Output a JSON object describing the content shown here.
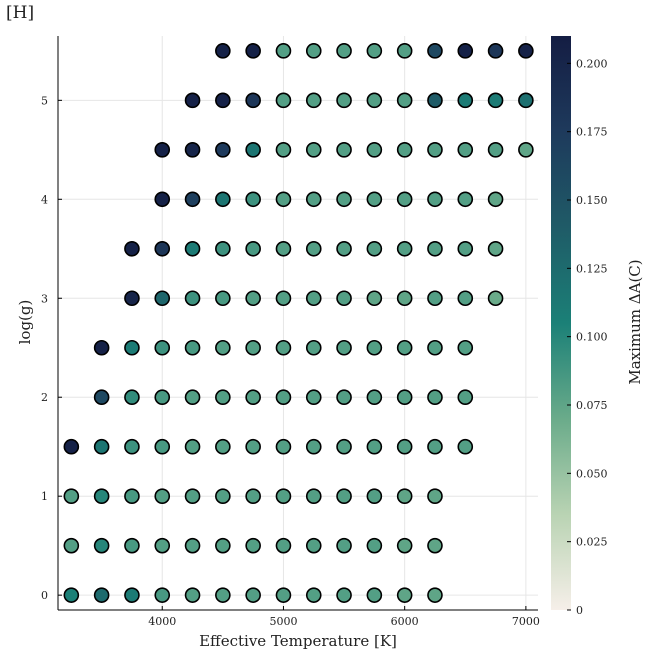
{
  "panel_label": "[H]",
  "chart_data": {
    "type": "scatter",
    "xlabel": "Effective Temperature [K]",
    "ylabel": "log(g)",
    "colorbar_label": "Maximum ΔA(C)",
    "xlim": [
      3140,
      7100
    ],
    "ylim": [
      -0.15,
      5.65
    ],
    "xticks": [
      4000,
      5000,
      6000,
      7000
    ],
    "yticks": [
      0,
      1,
      2,
      3,
      4,
      5
    ],
    "colorbar_ticks": [
      0,
      0.025,
      0.05,
      0.075,
      0.1,
      0.125,
      0.15,
      0.175,
      0.2
    ],
    "colorbar_tick_labels": [
      "0",
      "0.025",
      "0.050",
      "0.075",
      "0.100",
      "0.125",
      "0.150",
      "0.175",
      "0.200"
    ],
    "clim": [
      0,
      0.21
    ],
    "grid": true,
    "colormap": [
      "#f6efe9",
      "#b9d3b3",
      "#6aab8a",
      "#1b8077",
      "#1f5b67",
      "#1e3a5c",
      "#141d43"
    ],
    "points": [
      [
        3250,
        0,
        0.105
      ],
      [
        3500,
        0,
        0.125
      ],
      [
        3750,
        0,
        0.11
      ],
      [
        4000,
        0,
        0.085
      ],
      [
        4250,
        0,
        0.08
      ],
      [
        4500,
        0,
        0.08
      ],
      [
        4750,
        0,
        0.08
      ],
      [
        5000,
        0,
        0.08
      ],
      [
        5250,
        0,
        0.08
      ],
      [
        5500,
        0,
        0.08
      ],
      [
        5750,
        0,
        0.08
      ],
      [
        6000,
        0,
        0.075
      ],
      [
        6250,
        0,
        0.075
      ],
      [
        3250,
        0.5,
        0.08
      ],
      [
        3500,
        0.5,
        0.1
      ],
      [
        3750,
        0.5,
        0.085
      ],
      [
        4000,
        0.5,
        0.08
      ],
      [
        4250,
        0.5,
        0.08
      ],
      [
        4500,
        0.5,
        0.08
      ],
      [
        4750,
        0.5,
        0.08
      ],
      [
        5000,
        0.5,
        0.08
      ],
      [
        5250,
        0.5,
        0.08
      ],
      [
        5500,
        0.5,
        0.08
      ],
      [
        5750,
        0.5,
        0.08
      ],
      [
        6000,
        0.5,
        0.075
      ],
      [
        6250,
        0.5,
        0.075
      ],
      [
        3250,
        1,
        0.08
      ],
      [
        3500,
        1,
        0.1
      ],
      [
        3750,
        1,
        0.085
      ],
      [
        4000,
        1,
        0.08
      ],
      [
        4250,
        1,
        0.08
      ],
      [
        4500,
        1,
        0.08
      ],
      [
        4750,
        1,
        0.08
      ],
      [
        5000,
        1,
        0.08
      ],
      [
        5250,
        1,
        0.08
      ],
      [
        5500,
        1,
        0.08
      ],
      [
        5750,
        1,
        0.08
      ],
      [
        6000,
        1,
        0.075
      ],
      [
        6250,
        1,
        0.075
      ],
      [
        3250,
        1.5,
        0.205
      ],
      [
        3500,
        1.5,
        0.115
      ],
      [
        3750,
        1.5,
        0.09
      ],
      [
        4000,
        1.5,
        0.085
      ],
      [
        4250,
        1.5,
        0.08
      ],
      [
        4500,
        1.5,
        0.08
      ],
      [
        4750,
        1.5,
        0.08
      ],
      [
        5000,
        1.5,
        0.08
      ],
      [
        5250,
        1.5,
        0.08
      ],
      [
        5500,
        1.5,
        0.08
      ],
      [
        5750,
        1.5,
        0.08
      ],
      [
        6000,
        1.5,
        0.08
      ],
      [
        6250,
        1.5,
        0.08
      ],
      [
        6500,
        1.5,
        0.08
      ],
      [
        3500,
        2,
        0.16
      ],
      [
        3750,
        2,
        0.095
      ],
      [
        4000,
        2,
        0.085
      ],
      [
        4250,
        2,
        0.08
      ],
      [
        4500,
        2,
        0.08
      ],
      [
        4750,
        2,
        0.08
      ],
      [
        5000,
        2,
        0.08
      ],
      [
        5250,
        2,
        0.08
      ],
      [
        5500,
        2,
        0.08
      ],
      [
        5750,
        2,
        0.08
      ],
      [
        6000,
        2,
        0.08
      ],
      [
        6250,
        2,
        0.08
      ],
      [
        6500,
        2,
        0.08
      ],
      [
        3500,
        2.5,
        0.205
      ],
      [
        3750,
        2.5,
        0.11
      ],
      [
        4000,
        2.5,
        0.09
      ],
      [
        4250,
        2.5,
        0.085
      ],
      [
        4500,
        2.5,
        0.08
      ],
      [
        4750,
        2.5,
        0.08
      ],
      [
        5000,
        2.5,
        0.08
      ],
      [
        5250,
        2.5,
        0.08
      ],
      [
        5500,
        2.5,
        0.08
      ],
      [
        5750,
        2.5,
        0.08
      ],
      [
        6000,
        2.5,
        0.08
      ],
      [
        6250,
        2.5,
        0.08
      ],
      [
        6500,
        2.5,
        0.08
      ],
      [
        3750,
        3,
        0.2
      ],
      [
        4000,
        3,
        0.13
      ],
      [
        4250,
        3,
        0.09
      ],
      [
        4500,
        3,
        0.085
      ],
      [
        4750,
        3,
        0.08
      ],
      [
        5000,
        3,
        0.08
      ],
      [
        5250,
        3,
        0.08
      ],
      [
        5500,
        3,
        0.08
      ],
      [
        5750,
        3,
        0.075
      ],
      [
        6000,
        3,
        0.075
      ],
      [
        6250,
        3,
        0.08
      ],
      [
        6500,
        3,
        0.08
      ],
      [
        6750,
        3,
        0.07
      ],
      [
        3750,
        3.5,
        0.205
      ],
      [
        4000,
        3.5,
        0.18
      ],
      [
        4250,
        3.5,
        0.11
      ],
      [
        4500,
        3.5,
        0.09
      ],
      [
        4750,
        3.5,
        0.085
      ],
      [
        5000,
        3.5,
        0.08
      ],
      [
        5250,
        3.5,
        0.08
      ],
      [
        5500,
        3.5,
        0.08
      ],
      [
        5750,
        3.5,
        0.08
      ],
      [
        6000,
        3.5,
        0.08
      ],
      [
        6250,
        3.5,
        0.08
      ],
      [
        6500,
        3.5,
        0.08
      ],
      [
        6750,
        3.5,
        0.075
      ],
      [
        4000,
        4,
        0.205
      ],
      [
        4250,
        4,
        0.17
      ],
      [
        4500,
        4,
        0.115
      ],
      [
        4750,
        4,
        0.09
      ],
      [
        5000,
        4,
        0.08
      ],
      [
        5250,
        4,
        0.08
      ],
      [
        5500,
        4,
        0.08
      ],
      [
        5750,
        4,
        0.08
      ],
      [
        6000,
        4,
        0.08
      ],
      [
        6250,
        4,
        0.08
      ],
      [
        6500,
        4,
        0.08
      ],
      [
        6750,
        4,
        0.075
      ],
      [
        4000,
        4.5,
        0.205
      ],
      [
        4250,
        4.5,
        0.2
      ],
      [
        4500,
        4.5,
        0.175
      ],
      [
        4750,
        4.5,
        0.115
      ],
      [
        5000,
        4.5,
        0.08
      ],
      [
        5250,
        4.5,
        0.08
      ],
      [
        5500,
        4.5,
        0.08
      ],
      [
        5750,
        4.5,
        0.08
      ],
      [
        6000,
        4.5,
        0.08
      ],
      [
        6250,
        4.5,
        0.08
      ],
      [
        6500,
        4.5,
        0.08
      ],
      [
        6750,
        4.5,
        0.08
      ],
      [
        7000,
        4.5,
        0.075
      ],
      [
        4250,
        5,
        0.205
      ],
      [
        4500,
        5,
        0.205
      ],
      [
        4750,
        5,
        0.18
      ],
      [
        5000,
        5,
        0.08
      ],
      [
        5250,
        5,
        0.08
      ],
      [
        5500,
        5,
        0.08
      ],
      [
        5750,
        5,
        0.08
      ],
      [
        6000,
        5,
        0.08
      ],
      [
        6250,
        5,
        0.14
      ],
      [
        6500,
        5,
        0.11
      ],
      [
        6750,
        5,
        0.11
      ],
      [
        7000,
        5,
        0.12
      ],
      [
        4500,
        5.5,
        0.205
      ],
      [
        4750,
        5.5,
        0.205
      ],
      [
        5000,
        5.5,
        0.08
      ],
      [
        5250,
        5.5,
        0.08
      ],
      [
        5500,
        5.5,
        0.08
      ],
      [
        5750,
        5.5,
        0.08
      ],
      [
        6000,
        5.5,
        0.08
      ],
      [
        6250,
        5.5,
        0.16
      ],
      [
        6500,
        5.5,
        0.205
      ],
      [
        6750,
        5.5,
        0.18
      ],
      [
        7000,
        5.5,
        0.205
      ]
    ]
  }
}
